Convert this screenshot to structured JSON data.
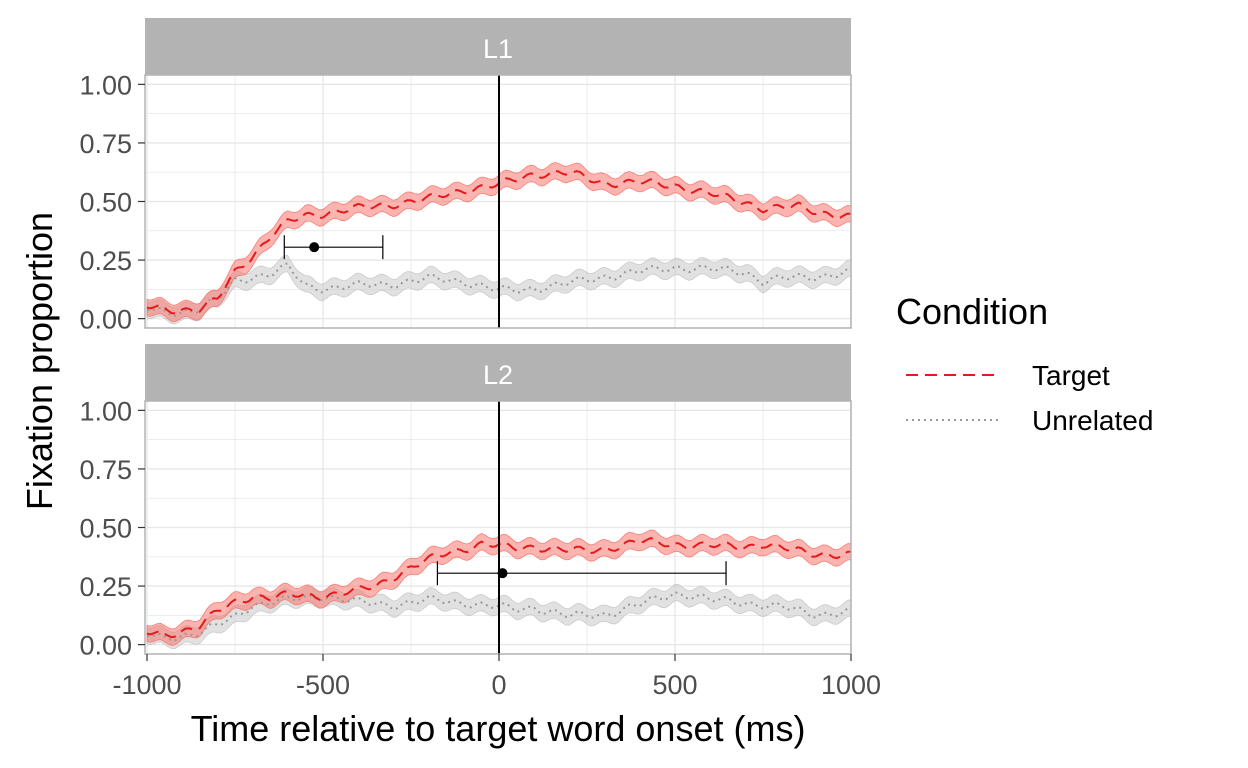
{
  "chart_data": {
    "type": "line",
    "xlabel": "Time relative to target word onset (ms)",
    "ylabel": "Fixation proportion",
    "xlim": [
      -1000,
      1000
    ],
    "ylim": [
      -0.04,
      1.04
    ],
    "x_ticks": [
      -1000,
      -500,
      0,
      500,
      1000
    ],
    "x_tick_labels": [
      "-1000",
      "-500",
      "0",
      "500",
      "1000"
    ],
    "y_ticks": [
      0,
      0.25,
      0.5,
      0.75,
      1
    ],
    "y_tick_labels": [
      "0.00",
      "0.25",
      "0.50",
      "0.75",
      "1.00"
    ],
    "grid": true,
    "vline_x": 0,
    "ribbon_halfwidth": 0.035,
    "legend": {
      "title": "Condition",
      "position": "right",
      "entries": [
        {
          "label": "Target",
          "color": "#e41a1c",
          "linetype": "dashed"
        },
        {
          "label": "Unrelated",
          "color": "#999999",
          "linetype": "dotted"
        }
      ]
    },
    "colors": {
      "target_line": "#e41a1c",
      "target_ribbon": "#f8766d",
      "unrelated_line": "#999999",
      "unrelated_ribbon": "#c8c8c8",
      "strip": "#b3b3b3",
      "panel_border": "#b3b3b3",
      "grid": "#e6e6e6"
    },
    "panels": [
      {
        "label": "L1",
        "series": [
          {
            "name": "Target",
            "x": [
              -1000,
              -950,
              -900,
              -850,
              -800,
              -750,
              -700,
              -650,
              -600,
              -550,
              -500,
              -400,
              -300,
              -200,
              -100,
              0,
              100,
              200,
              300,
              400,
              500,
              600,
              700,
              750,
              800,
              850,
              900,
              1000
            ],
            "y": [
              0.05,
              0.04,
              0.04,
              0.04,
              0.08,
              0.2,
              0.27,
              0.35,
              0.41,
              0.44,
              0.45,
              0.47,
              0.49,
              0.51,
              0.55,
              0.57,
              0.62,
              0.62,
              0.58,
              0.58,
              0.57,
              0.53,
              0.5,
              0.47,
              0.47,
              0.48,
              0.46,
              0.43
            ]
          },
          {
            "name": "Unrelated",
            "x": [
              -1000,
              -950,
              -900,
              -850,
              -800,
              -750,
              -700,
              -650,
              -600,
              -550,
              -500,
              -400,
              -300,
              -200,
              -100,
              -50,
              0,
              50,
              100,
              200,
              300,
              400,
              500,
              600,
              700,
              750,
              800,
              900,
              1000
            ],
            "y": [
              0.04,
              0.03,
              0.03,
              0.04,
              0.08,
              0.16,
              0.18,
              0.19,
              0.22,
              0.14,
              0.13,
              0.14,
              0.15,
              0.17,
              0.16,
              0.14,
              0.12,
              0.12,
              0.13,
              0.15,
              0.18,
              0.2,
              0.22,
              0.21,
              0.2,
              0.16,
              0.17,
              0.18,
              0.2
            ]
          }
        ],
        "point": {
          "x": -525,
          "y": 0.305,
          "xmin": -610,
          "xmax": -330
        }
      },
      {
        "label": "L2",
        "series": [
          {
            "name": "Target",
            "x": [
              -1000,
              -950,
              -900,
              -850,
              -800,
              -750,
              -700,
              -650,
              -600,
              -500,
              -400,
              -350,
              -300,
              -250,
              -200,
              -150,
              -100,
              -50,
              0,
              50,
              100,
              200,
              250,
              300,
              400,
              500,
              600,
              700,
              750,
              800,
              900,
              1000
            ],
            "y": [
              0.05,
              0.04,
              0.06,
              0.08,
              0.14,
              0.18,
              0.21,
              0.2,
              0.21,
              0.21,
              0.23,
              0.25,
              0.29,
              0.33,
              0.36,
              0.39,
              0.41,
              0.43,
              0.42,
              0.41,
              0.42,
              0.4,
              0.4,
              0.41,
              0.44,
              0.43,
              0.42,
              0.42,
              0.43,
              0.41,
              0.39,
              0.38
            ]
          },
          {
            "name": "Unrelated",
            "x": [
              -1000,
              -950,
              -900,
              -850,
              -800,
              -750,
              -700,
              -600,
              -500,
              -400,
              -300,
              -200,
              -100,
              0,
              50,
              100,
              200,
              300,
              400,
              500,
              550,
              600,
              700,
              800,
              900,
              1000
            ],
            "y": [
              0.04,
              0.03,
              0.04,
              0.05,
              0.08,
              0.12,
              0.17,
              0.19,
              0.21,
              0.18,
              0.17,
              0.19,
              0.18,
              0.16,
              0.15,
              0.16,
              0.12,
              0.13,
              0.17,
              0.22,
              0.21,
              0.19,
              0.18,
              0.16,
              0.13,
              0.14
            ]
          }
        ],
        "point": {
          "x": 10,
          "y": 0.305,
          "xmin": -175,
          "xmax": 645
        }
      }
    ]
  }
}
